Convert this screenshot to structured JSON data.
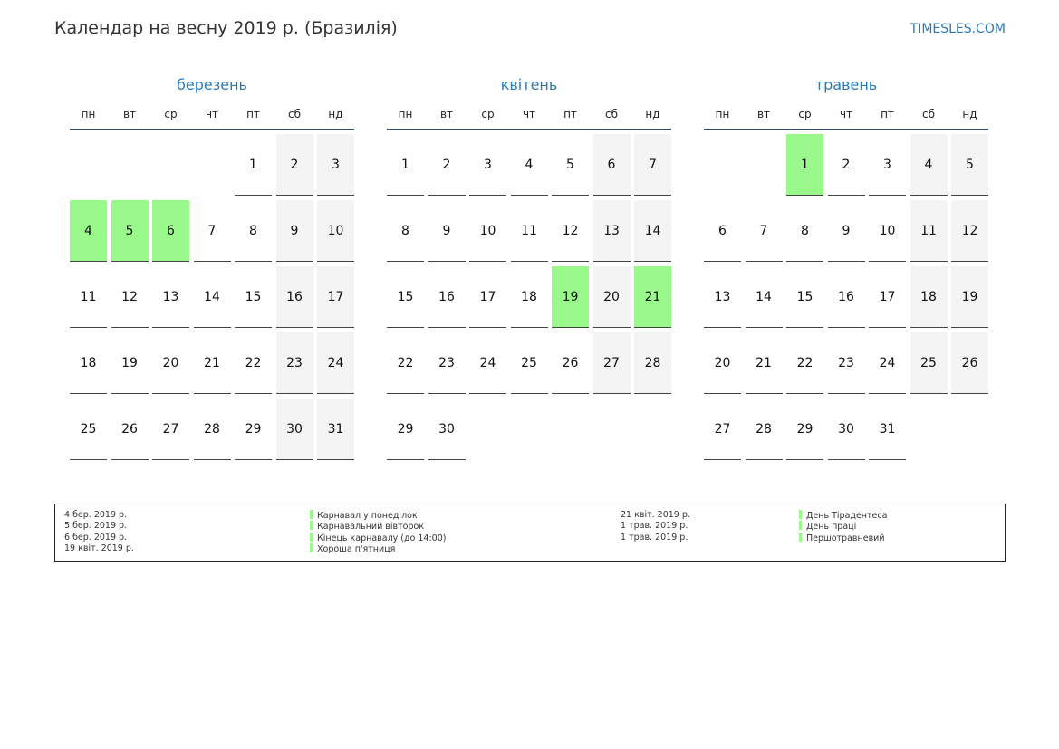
{
  "header": {
    "title": "Календар на весну 2019 р. (Бразилія)",
    "brand": "TIMESLES.COM"
  },
  "weekdays": [
    "пн",
    "вт",
    "ср",
    "чт",
    "пт",
    "сб",
    "нд"
  ],
  "colors": {
    "holiday": "#99f98b",
    "weekend": "#f4f4f4",
    "accent": "#2a7ab8"
  },
  "months": [
    {
      "name": "березень",
      "start_weekday": 4,
      "days": 31,
      "holidays": [
        4,
        5,
        6
      ]
    },
    {
      "name": "квітень",
      "start_weekday": 0,
      "days": 30,
      "holidays": [
        19,
        21
      ]
    },
    {
      "name": "травень",
      "start_weekday": 2,
      "days": 31,
      "holidays": [
        1
      ]
    }
  ],
  "legend": [
    {
      "date": "4 бер. 2019 р.",
      "name": "Карнавал у понеділок"
    },
    {
      "date": "5 бер. 2019 р.",
      "name": "Карнавальний вівторок"
    },
    {
      "date": "6 бер. 2019 р.",
      "name": "Кінець карнавалу (до 14:00)"
    },
    {
      "date": "19 квіт. 2019 р.",
      "name": "Хороша п'ятниця"
    },
    {
      "date": "21 квіт. 2019 р.",
      "name": "День Тірадентеса"
    },
    {
      "date": "1 трав. 2019 р.",
      "name": "День праці"
    },
    {
      "date": "1 трав. 2019 р.",
      "name": "Першотравневий"
    }
  ]
}
